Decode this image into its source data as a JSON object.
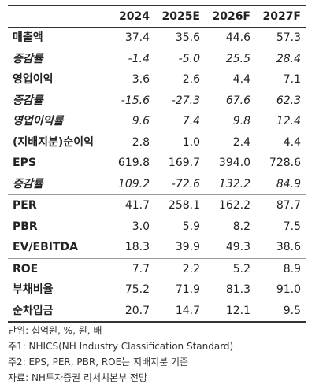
{
  "columns": [
    "",
    "2024",
    "2025E",
    "2026F",
    "2027F"
  ],
  "rows": [
    {
      "label": "매출액",
      "values": [
        "37.4",
        "35.6",
        "44.6",
        "57.3"
      ],
      "style": "bold",
      "sep": false
    },
    {
      "label": "증감률",
      "values": [
        "-1.4",
        "-5.0",
        "25.5",
        "28.4"
      ],
      "style": "ital",
      "sep": false
    },
    {
      "label": "영업이익",
      "values": [
        "3.6",
        "2.6",
        "4.4",
        "7.1"
      ],
      "style": "bold",
      "sep": false
    },
    {
      "label": "증감률",
      "values": [
        "-15.6",
        "-27.3",
        "67.6",
        "62.3"
      ],
      "style": "ital",
      "sep": false
    },
    {
      "label": "영업이익률",
      "values": [
        "9.6",
        "7.4",
        "9.8",
        "12.4"
      ],
      "style": "ital",
      "sep": false
    },
    {
      "label": "(지배지분)순이익",
      "values": [
        "2.8",
        "1.0",
        "2.4",
        "4.4"
      ],
      "style": "bold",
      "sep": false
    },
    {
      "label": "EPS",
      "values": [
        "619.8",
        "169.7",
        "394.0",
        "728.6"
      ],
      "style": "bold",
      "sep": false
    },
    {
      "label": "증감률",
      "values": [
        "109.2",
        "-72.6",
        "132.2",
        "84.9"
      ],
      "style": "ital",
      "sep": false
    },
    {
      "label": "PER",
      "values": [
        "41.7",
        "258.1",
        "162.2",
        "87.7"
      ],
      "style": "bold",
      "sep": true
    },
    {
      "label": "PBR",
      "values": [
        "3.0",
        "5.9",
        "8.2",
        "7.5"
      ],
      "style": "bold",
      "sep": false
    },
    {
      "label": "EV/EBITDA",
      "values": [
        "18.3",
        "39.9",
        "49.3",
        "38.6"
      ],
      "style": "bold",
      "sep": false
    },
    {
      "label": "ROE",
      "values": [
        "7.7",
        "2.2",
        "5.2",
        "8.9"
      ],
      "style": "bold",
      "sep": true
    },
    {
      "label": "부채비율",
      "values": [
        "75.2",
        "71.9",
        "81.3",
        "91.0"
      ],
      "style": "bold",
      "sep": false
    },
    {
      "label": "순차입금",
      "values": [
        "20.7",
        "14.7",
        "12.1",
        "9.5"
      ],
      "style": "bold",
      "sep": false
    }
  ],
  "notes": [
    "단위: 십억원, %, 원, 배",
    "주1: NHICS(NH Industry Classification Standard)",
    "주2: EPS, PER, PBR, ROE는 지배지분 기준",
    "자료: NH투자증권 리서치본부 전망"
  ]
}
